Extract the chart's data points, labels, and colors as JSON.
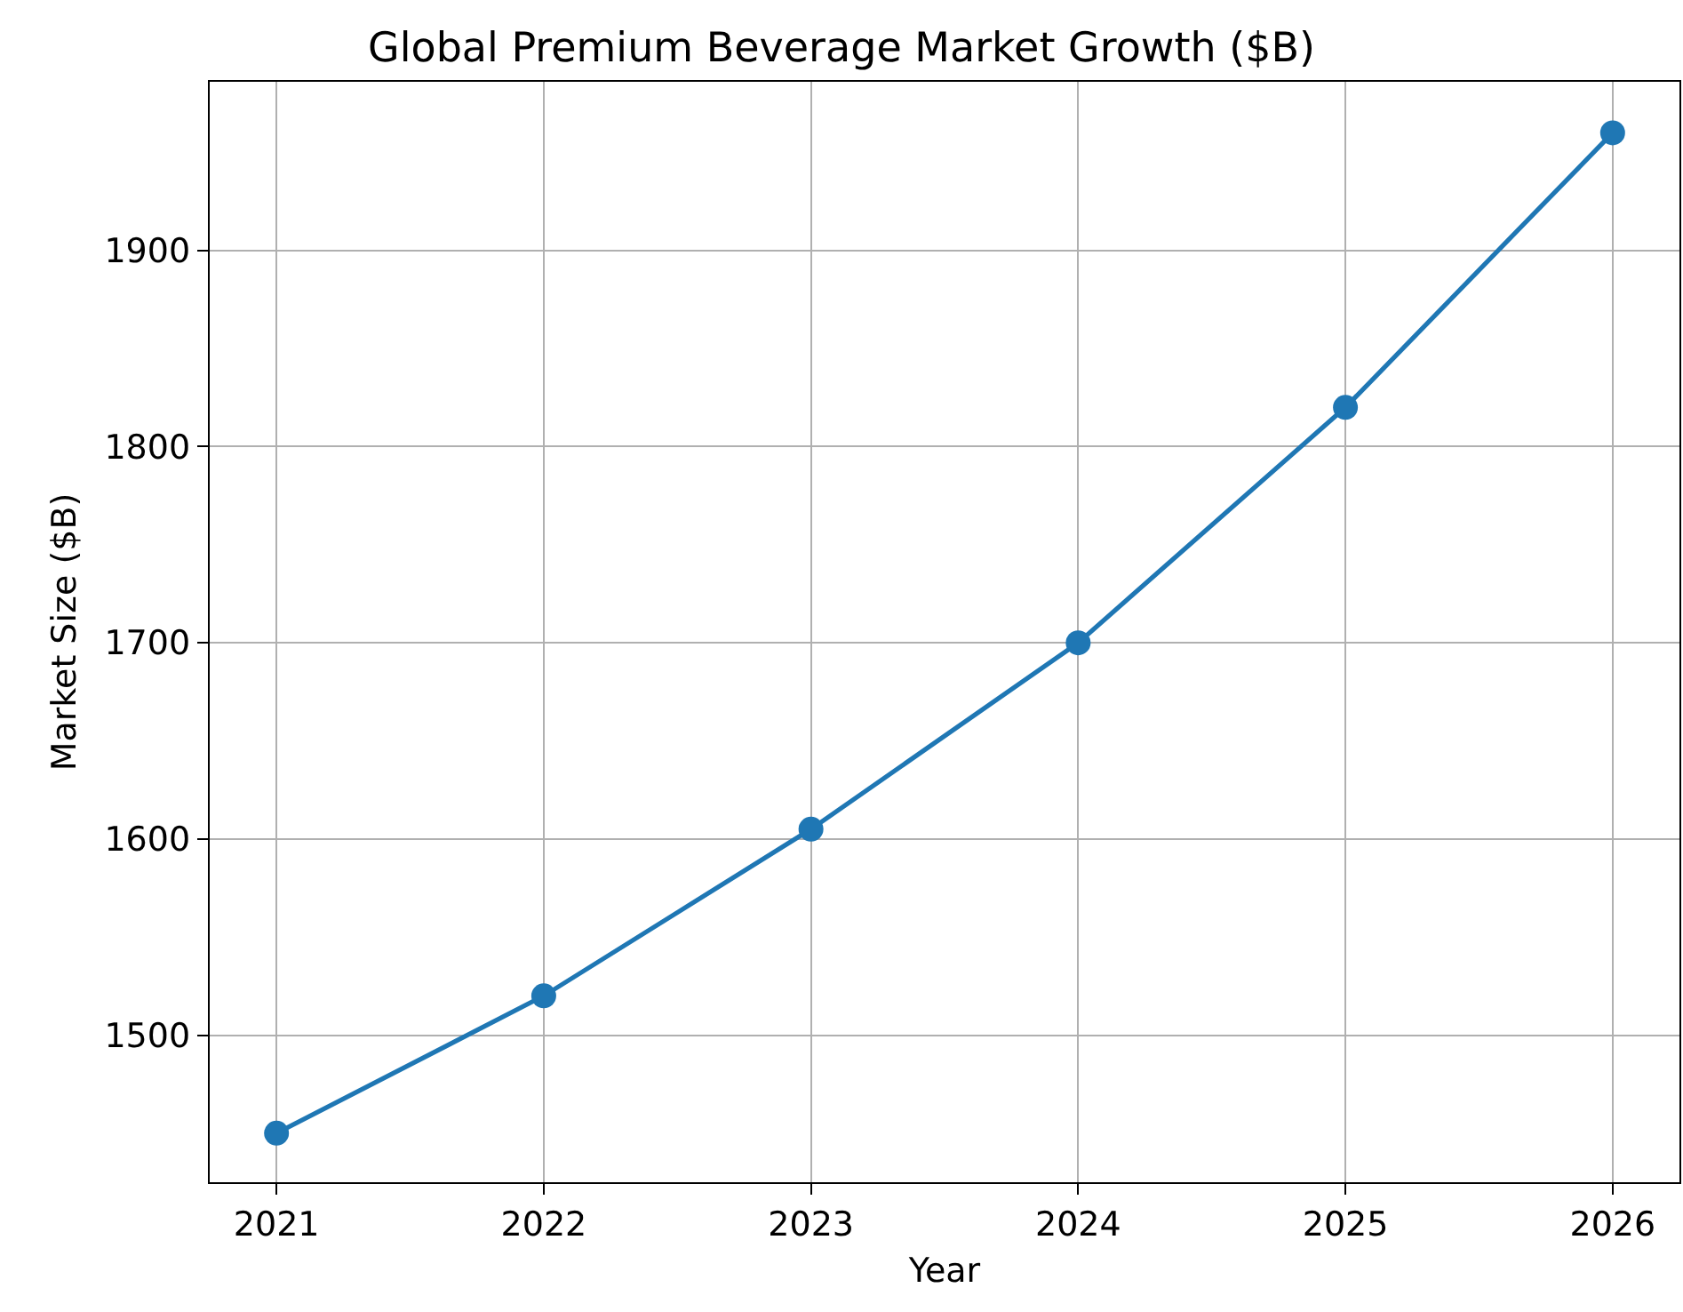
{
  "chart_data": {
    "type": "line",
    "title": "Global Premium Beverage Market Growth ($B)",
    "xlabel": "Year",
    "ylabel": "Market Size ($B)",
    "x": [
      2021,
      2022,
      2023,
      2024,
      2025,
      2026
    ],
    "series": [
      {
        "color": "#1f77b4",
        "values": [
          1450,
          1520,
          1605,
          1700,
          1820,
          1960
        ]
      }
    ],
    "xlim": [
      2020.75,
      2026.25
    ],
    "xticks": [
      2021,
      2022,
      2023,
      2024,
      2025,
      2026
    ],
    "ylim": [
      1425,
      1986
    ],
    "yticks": [
      1500,
      1600,
      1700,
      1800,
      1900
    ],
    "grid": true,
    "marker": "circle",
    "line_style": "solid"
  }
}
